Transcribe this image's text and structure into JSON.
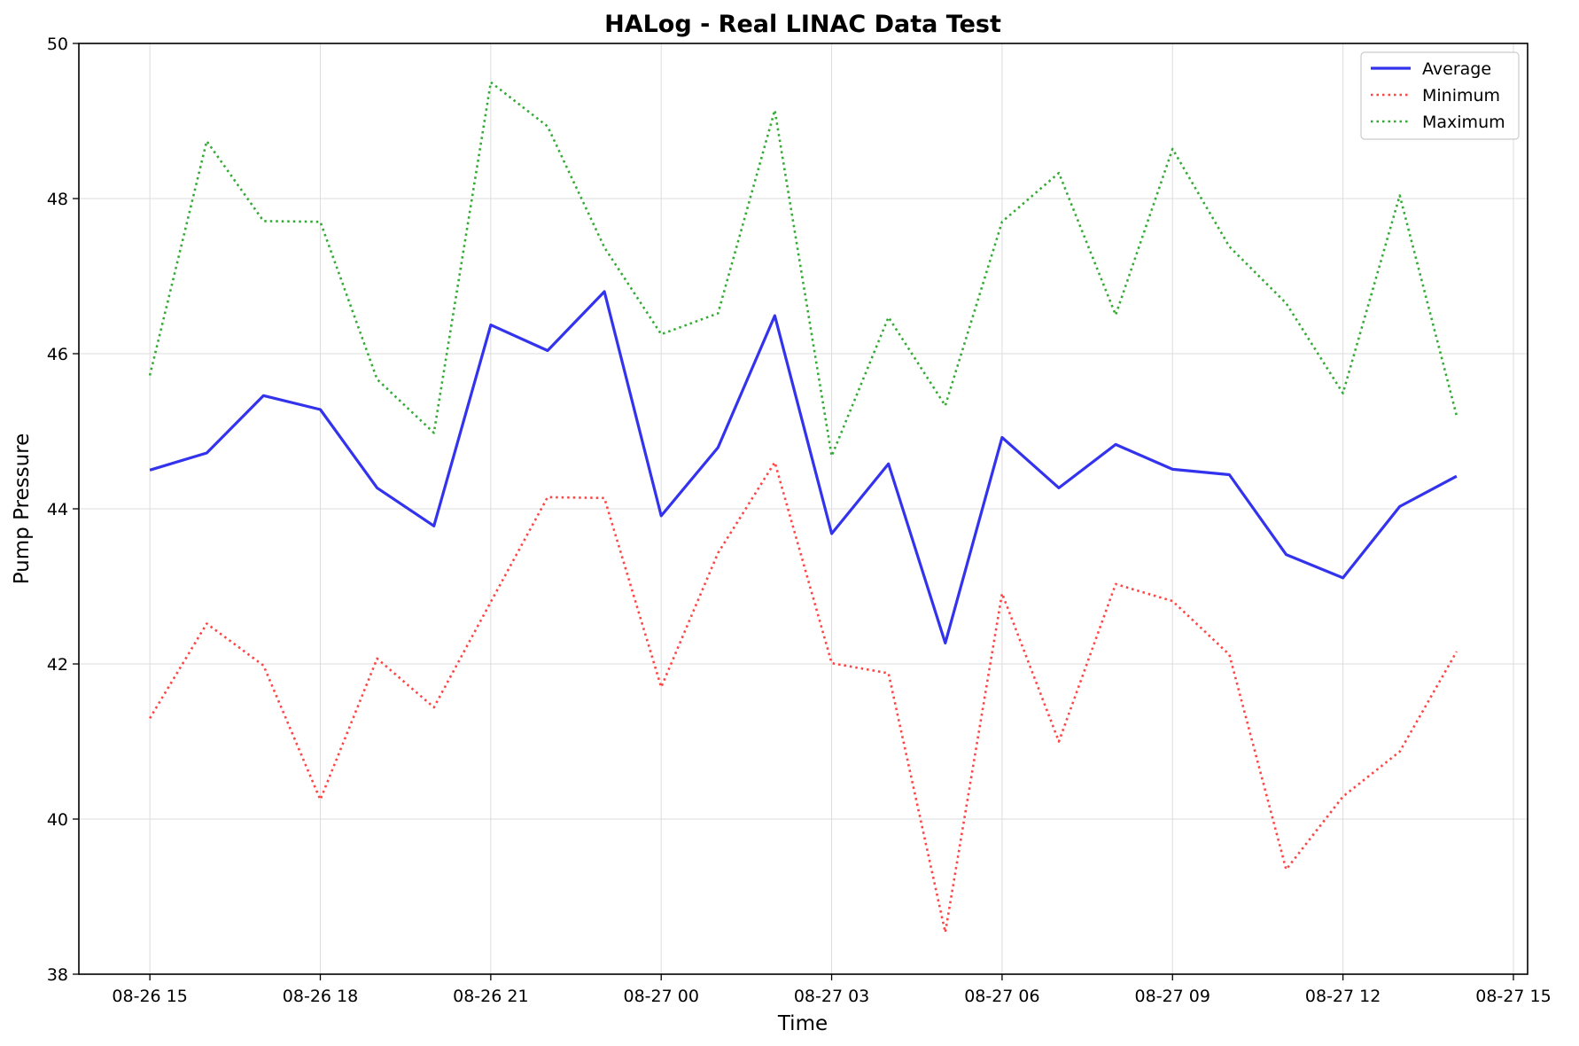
{
  "chart_data": {
    "type": "line",
    "title": "HALog - Real LINAC Data Test",
    "xlabel": "Time",
    "ylabel": "Pump Pressure",
    "x_hours": [
      0,
      1,
      2,
      3,
      4,
      5,
      6,
      7,
      8,
      9,
      10,
      11,
      12,
      13,
      14,
      15,
      16,
      17,
      18,
      19,
      20,
      21,
      22,
      23
    ],
    "xlim": [
      -1.25,
      24.25
    ],
    "ylim": [
      38,
      50
    ],
    "x_ticks": [
      {
        "h": 0,
        "label": "08-26 15"
      },
      {
        "h": 3,
        "label": "08-26 18"
      },
      {
        "h": 6,
        "label": "08-26 21"
      },
      {
        "h": 9,
        "label": "08-27 00"
      },
      {
        "h": 12,
        "label": "08-27 03"
      },
      {
        "h": 15,
        "label": "08-27 06"
      },
      {
        "h": 18,
        "label": "08-27 09"
      },
      {
        "h": 21,
        "label": "08-27 12"
      },
      {
        "h": 24,
        "label": "08-27 15"
      }
    ],
    "y_ticks": [
      {
        "v": 38,
        "label": "38"
      },
      {
        "v": 40,
        "label": "40"
      },
      {
        "v": 42,
        "label": "42"
      },
      {
        "v": 44,
        "label": "44"
      },
      {
        "v": 46,
        "label": "46"
      },
      {
        "v": 48,
        "label": "48"
      },
      {
        "v": 50,
        "label": "50"
      }
    ],
    "grid": true,
    "legend_position": "top-right",
    "series": [
      {
        "name": "Average",
        "color": "#3333ee",
        "style": "solid",
        "values": [
          44.5,
          44.72,
          45.46,
          45.28,
          44.27,
          43.78,
          46.37,
          46.04,
          46.8,
          43.91,
          44.79,
          46.49,
          43.68,
          44.58,
          42.27,
          44.92,
          44.27,
          44.83,
          44.51,
          44.44,
          43.41,
          43.11,
          44.03,
          44.42
        ]
      },
      {
        "name": "Minimum",
        "color": "#ff4444",
        "style": "dotted",
        "values": [
          41.3,
          42.52,
          41.98,
          40.25,
          42.07,
          41.44,
          42.8,
          44.15,
          44.14,
          41.7,
          43.43,
          44.6,
          42.01,
          41.88,
          38.54,
          42.91,
          41.0,
          43.03,
          42.81,
          42.12,
          39.35,
          40.29,
          40.87,
          42.16
        ]
      },
      {
        "name": "Maximum",
        "color": "#33aa33",
        "style": "dotted",
        "values": [
          45.72,
          48.74,
          47.71,
          47.7,
          45.67,
          44.98,
          49.5,
          48.93,
          47.37,
          46.25,
          46.52,
          49.14,
          44.68,
          46.47,
          45.33,
          47.7,
          48.33,
          46.5,
          48.64,
          47.38,
          46.65,
          45.49,
          48.04,
          45.2
        ]
      }
    ]
  }
}
